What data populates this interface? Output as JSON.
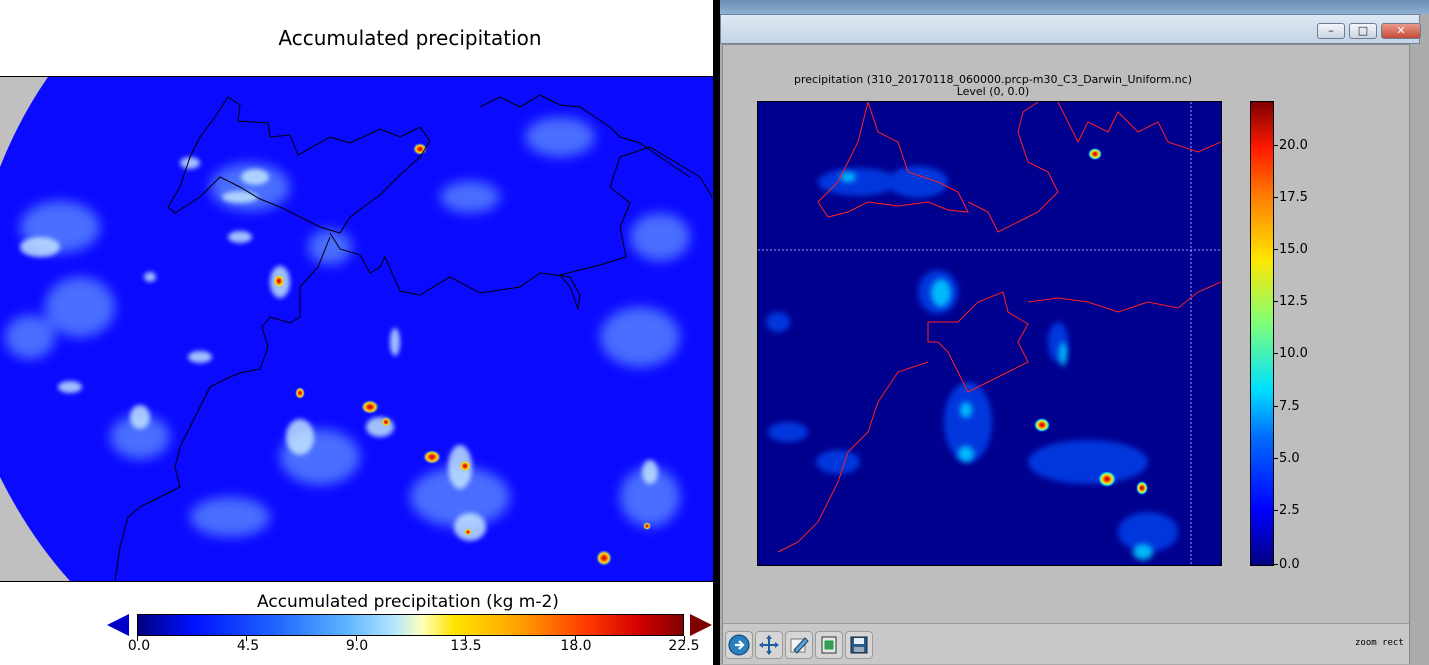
{
  "left_panel": {
    "title": "Accumulated precipitation",
    "colorbar": {
      "label": "Accumulated precipitation (kg m-2)",
      "ticks": [
        "0.0",
        "4.5",
        "9.0",
        "13.5",
        "18.0",
        "22.5"
      ]
    }
  },
  "right_window": {
    "titlebar": {
      "minimize_label": "–",
      "maximize_label": "□",
      "close_label": "✕"
    },
    "plot_title": "precipitation (310_20170118_060000.prcp-m30_C3_Darwin_Uniform.nc)",
    "plot_subtitle": "Level  (0, 0.0)",
    "colorbar_ticks": [
      "20.0",
      "17.5",
      "15.0",
      "12.5",
      "10.0",
      "7.5",
      "5.0",
      "2.5",
      "0.0"
    ],
    "toolbar": {
      "buttons": [
        "home-icon",
        "pan-icon",
        "edit-icon",
        "print-icon",
        "save-icon"
      ],
      "status": "zoom rect"
    }
  },
  "colors": {
    "map_background": "#0a0aff",
    "right_plot_background": "#00008f",
    "coastline_left": "#000000",
    "coastline_right": "#ff2020",
    "window_gray": "#bebebe"
  }
}
